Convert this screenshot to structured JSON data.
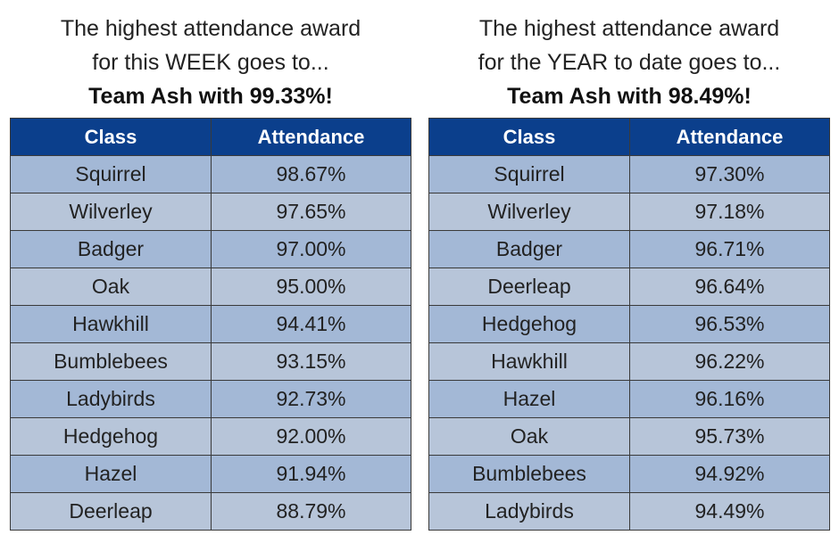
{
  "week": {
    "line1": "The highest attendance award",
    "line2": "for this WEEK goes to...",
    "winner": "Team Ash with 99.33%!",
    "headers": [
      "Class",
      "Attendance"
    ],
    "rows": [
      [
        "Squirrel",
        "98.67%"
      ],
      [
        "Wilverley",
        "97.65%"
      ],
      [
        "Badger",
        "97.00%"
      ],
      [
        "Oak",
        "95.00%"
      ],
      [
        "Hawkhill",
        "94.41%"
      ],
      [
        "Bumblebees",
        "93.15%"
      ],
      [
        "Ladybirds",
        "92.73%"
      ],
      [
        "Hedgehog",
        "92.00%"
      ],
      [
        "Hazel",
        "91.94%"
      ],
      [
        "Deerleap",
        "88.79%"
      ]
    ]
  },
  "year": {
    "line1": "The highest attendance award",
    "line2": "for the YEAR to date goes to...",
    "winner": "Team Ash with 98.49%!",
    "headers": [
      "Class",
      "Attendance"
    ],
    "rows": [
      [
        "Squirrel",
        "97.30%"
      ],
      [
        "Wilverley",
        "97.18%"
      ],
      [
        "Badger",
        "96.71%"
      ],
      [
        "Deerleap",
        "96.64%"
      ],
      [
        "Hedgehog",
        "96.53%"
      ],
      [
        "Hawkhill",
        "96.22%"
      ],
      [
        "Hazel",
        "96.16%"
      ],
      [
        "Oak",
        "95.73%"
      ],
      [
        "Bumblebees",
        "94.92%"
      ],
      [
        "Ladybirds",
        "94.49%"
      ]
    ]
  },
  "colors": {
    "header": "#0b3f8c",
    "row_light": "#b7c5d9",
    "row_dark": "#a3b8d6"
  }
}
